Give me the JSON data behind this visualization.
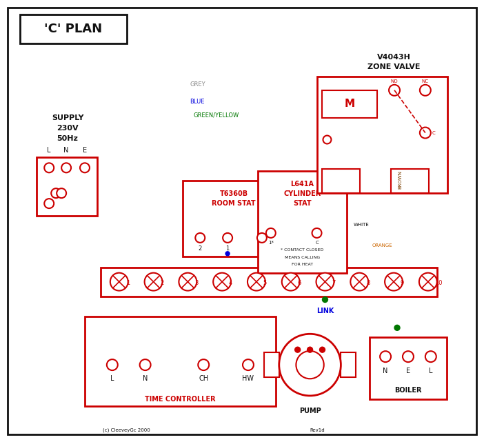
{
  "title": "'C' PLAN",
  "bg_color": "#ffffff",
  "red": "#cc0000",
  "blue": "#0000dd",
  "green": "#007700",
  "brown": "#7B3F00",
  "grey": "#888888",
  "orange": "#cc6600",
  "black": "#111111",
  "supply_lines": [
    "SUPPLY",
    "230V",
    "50Hz"
  ],
  "zone_valve_lines": [
    "V4043H",
    "ZONE VALVE"
  ],
  "time_ctrl_text": "TIME CONTROLLER",
  "pump_text": "PUMP",
  "boiler_text": "BOILER",
  "link_text": "LINK",
  "copyright": "(c) CleeveyGc 2000",
  "rev": "Rev1d"
}
